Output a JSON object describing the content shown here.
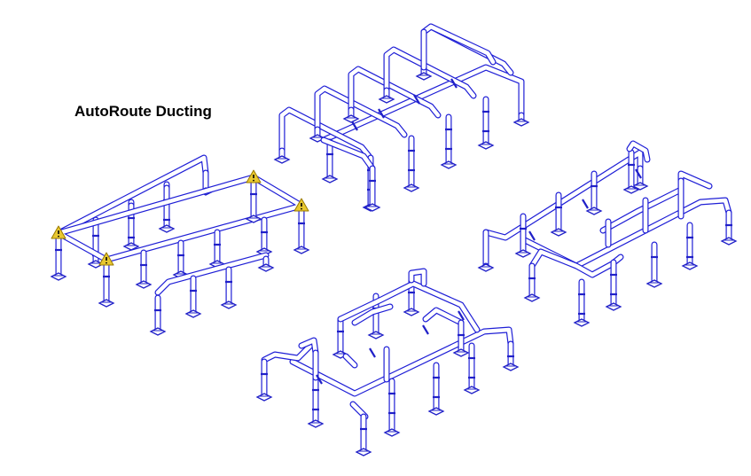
{
  "title": "AutoRoute Ducting",
  "colors": {
    "duct_outline": "#1f1fd6",
    "duct_fill": "#ffffff",
    "support": "#2020c8",
    "warning_fill": "#e8c830",
    "warning_outline": "#9a7a00",
    "text": "#000000"
  },
  "icons": {
    "warning": "warning-triangle-icon"
  },
  "assemblies": [
    {
      "name": "assembly-1-with-warnings"
    },
    {
      "name": "assembly-2-top"
    },
    {
      "name": "assembly-3-right"
    },
    {
      "name": "assembly-4-bottom"
    }
  ]
}
